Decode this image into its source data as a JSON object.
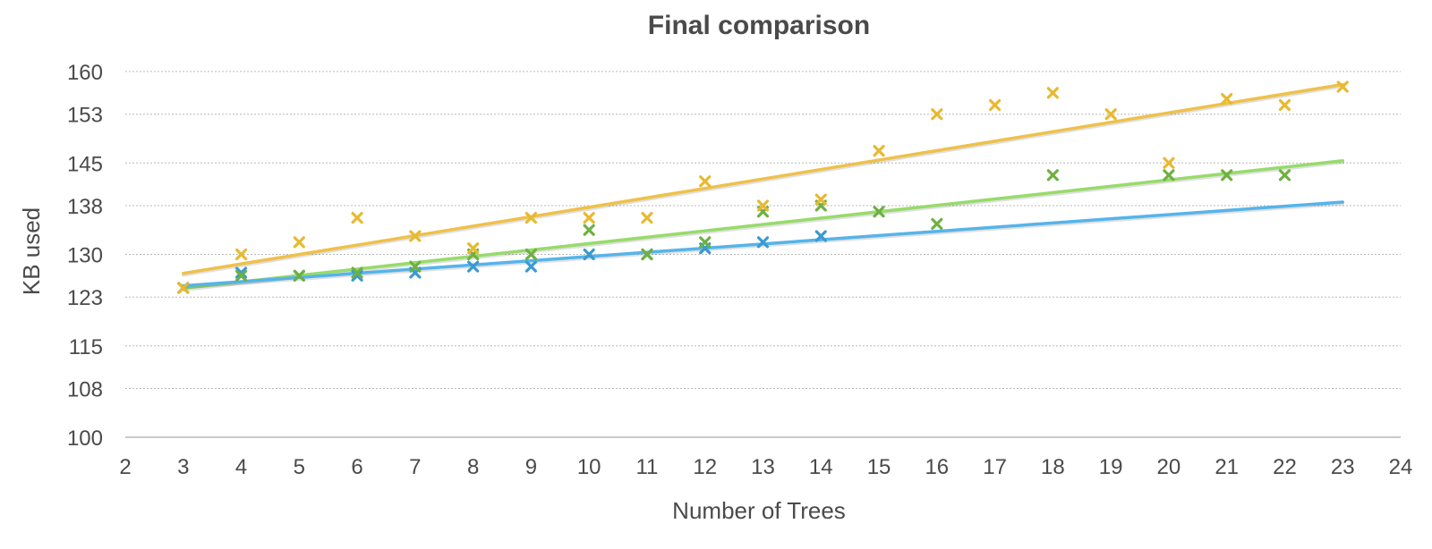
{
  "chart_data": {
    "type": "scatter",
    "title": "Final comparison",
    "xlabel": "Number of Trees",
    "ylabel": "KB used",
    "xlim": [
      2,
      24
    ],
    "ylim": [
      100,
      160
    ],
    "x_ticks": [
      "2",
      "3",
      "4",
      "5",
      "6",
      "7",
      "8",
      "9",
      "10",
      "11",
      "12",
      "13",
      "14",
      "15",
      "16",
      "17",
      "18",
      "19",
      "20",
      "21",
      "22",
      "23",
      "24"
    ],
    "y_ticks": [
      "100",
      "108",
      "115",
      "123",
      "130",
      "138",
      "145",
      "153",
      "160"
    ],
    "grid": true,
    "legend": "none",
    "trendlines": "linear",
    "series": [
      {
        "color": "#E8B931",
        "trend_color": "#EEC14A",
        "points": [
          [
            3,
            124.5
          ],
          [
            4,
            130
          ],
          [
            5,
            132
          ],
          [
            6,
            136
          ],
          [
            7,
            133
          ],
          [
            8,
            131
          ],
          [
            9,
            136
          ],
          [
            10,
            136
          ],
          [
            11,
            136
          ],
          [
            12,
            142
          ],
          [
            13,
            138
          ],
          [
            14,
            139
          ],
          [
            15,
            147
          ],
          [
            16,
            153
          ],
          [
            17,
            154.5
          ],
          [
            18,
            156.5
          ],
          [
            19,
            153
          ],
          [
            20,
            145
          ],
          [
            21,
            155.5
          ],
          [
            22,
            154.5
          ],
          [
            23,
            157.5
          ]
        ]
      },
      {
        "color": "#6FB043",
        "trend_color": "#97DB6A",
        "points": [
          [
            3,
            124.5
          ],
          [
            4,
            126.5
          ],
          [
            5,
            126.5
          ],
          [
            6,
            127
          ],
          [
            7,
            128
          ],
          [
            8,
            130
          ],
          [
            9,
            130
          ],
          [
            10,
            134
          ],
          [
            11,
            130
          ],
          [
            12,
            132
          ],
          [
            13,
            137
          ],
          [
            14,
            138
          ],
          [
            15,
            137
          ],
          [
            16,
            135
          ],
          [
            18,
            143
          ],
          [
            20,
            143
          ],
          [
            21,
            143
          ],
          [
            22,
            143
          ]
        ]
      },
      {
        "color": "#3A9AD2",
        "trend_color": "#55B4EA",
        "points": [
          [
            3,
            124.5
          ],
          [
            4,
            127
          ],
          [
            5,
            126.5
          ],
          [
            6,
            126.5
          ],
          [
            7,
            127
          ],
          [
            8,
            128
          ],
          [
            9,
            128
          ],
          [
            10,
            130
          ],
          [
            11,
            130
          ],
          [
            12,
            131
          ],
          [
            13,
            132
          ],
          [
            14,
            133
          ]
        ]
      }
    ]
  }
}
